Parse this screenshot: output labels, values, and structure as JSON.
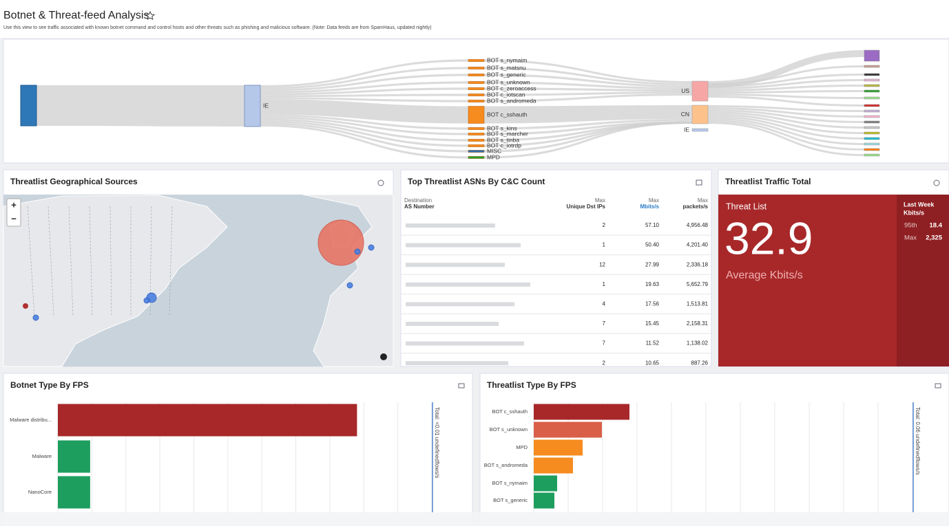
{
  "header": {
    "title": "Botnet & Threat-feed Analysis",
    "subtitle": "Use this view to see traffic associated with known botnet command and control hosts and other threats such as phishing and malicious software. (Note: Data feeds are from SpamHaus, updated nightly)"
  },
  "sankey": {
    "source_label": "IE",
    "bots": [
      "BOT s_nymaim",
      "BOT s_matsnu",
      "BOT s_generic",
      "BOT s_unknown",
      "BOT c_zeroaccess",
      "BOT c_iotscan",
      "BOT s_andromeda",
      "BOT c_sshauth",
      "BOT s_kins",
      "BOT s_marcher",
      "BOT s_tinba",
      "BOT c_iotrdp",
      "MISC",
      "MPD"
    ],
    "countries": [
      "US",
      "CN",
      "IE"
    ]
  },
  "map": {
    "title": "Threatlist Geographical Sources",
    "zoom_in": "+",
    "zoom_out": "−"
  },
  "asn_table": {
    "title": "Top Threatlist ASNs By C&C Count",
    "headers": [
      [
        "Destination",
        "AS Number"
      ],
      [
        "Max",
        "Unique Dst IPs"
      ],
      [
        "Max",
        "Mbits/s"
      ],
      [
        "Max",
        "packets/s"
      ]
    ],
    "rows": [
      [
        "2",
        "57.10",
        "4,956.48"
      ],
      [
        "1",
        "50.40",
        "4,201.40"
      ],
      [
        "12",
        "27.99",
        "2,336.18"
      ],
      [
        "1",
        "19.63",
        "5,652.79"
      ],
      [
        "4",
        "17.56",
        "1,513.81"
      ],
      [
        "7",
        "15.45",
        "2,158.31"
      ],
      [
        "7",
        "11.52",
        "1,138.02"
      ],
      [
        "2",
        "10.65",
        "887.26"
      ]
    ]
  },
  "traffic": {
    "title": "Threatlist Traffic Total",
    "label": "Threat List",
    "value": "32.9",
    "unit": "Average Kbits/s",
    "side_title": "Last Week",
    "side_unit": "Kbits/s",
    "stats": [
      [
        "95th",
        "18.4"
      ],
      [
        "Max",
        "2,325"
      ]
    ]
  },
  "chart_data": [
    {
      "type": "bar",
      "title": "Botnet Type By FPS",
      "total_label": "Total: <0.01 undefinedflows/s",
      "categories": [
        "Malware distribu...",
        "Malware",
        "NanoCore"
      ],
      "colors": [
        "#a8282a",
        "#1e9e5e",
        "#1e9e5e"
      ],
      "values": [
        8.8,
        0.95,
        0.95
      ],
      "xlim": [
        0,
        11
      ]
    },
    {
      "type": "bar",
      "title": "Threatlist Type By FPS",
      "total_label": "Total: 0.06 undefinedflows/s",
      "categories": [
        "BOT c_sshauth",
        "BOT s_unknown",
        "MPD",
        "BOT s_andromeda",
        "BOT s_nymaim",
        "BOT s_generic"
      ],
      "colors": [
        "#a8282a",
        "#d95f48",
        "#f68b1f",
        "#f68b1f",
        "#1e9e5e",
        "#1e9e5e"
      ],
      "values": [
        2.78,
        1.98,
        1.42,
        1.14,
        0.68,
        0.6
      ],
      "xlim": [
        0,
        11
      ]
    }
  ]
}
